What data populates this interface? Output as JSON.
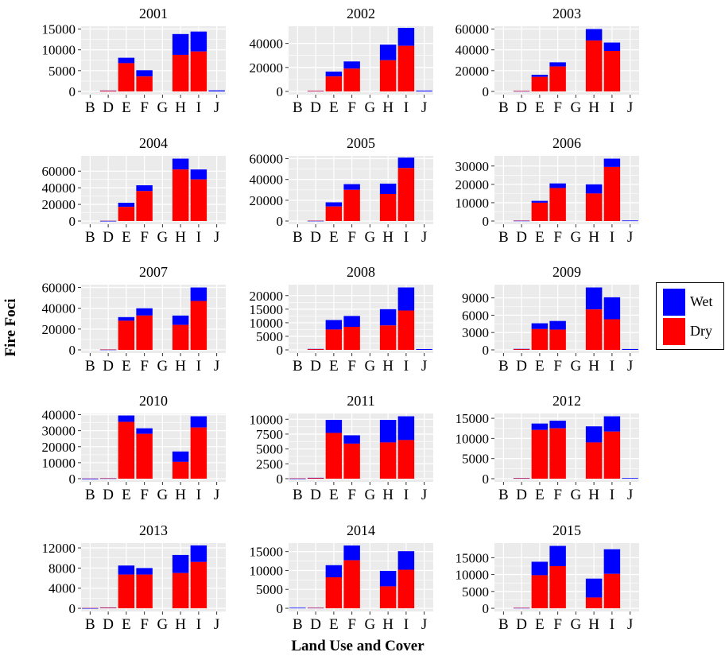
{
  "y_title": "Fire Foci",
  "x_title": "Land Use and Cover",
  "colors": {
    "Wet": "#0000ff",
    "Dry": "#ff0000",
    "panel_bg": "#ebebeb",
    "grid": "#ffffff"
  },
  "legend": [
    {
      "name": "Wet"
    },
    {
      "name": "Dry"
    }
  ],
  "chart_data": {
    "type": "bar",
    "stacked": true,
    "categories": [
      "B",
      "D",
      "E",
      "F",
      "G",
      "H",
      "I",
      "J"
    ],
    "series_names": [
      "Wet",
      "Dry"
    ],
    "panels": [
      {
        "title": "2001",
        "ylim": [
          0,
          15000
        ],
        "yticks": [
          0,
          5000,
          10000,
          15000
        ],
        "dry": [
          0,
          150,
          6800,
          3600,
          0,
          8800,
          9600,
          0
        ],
        "wet": [
          0,
          60,
          1300,
          1500,
          0,
          5000,
          4800,
          250
        ]
      },
      {
        "title": "2002",
        "ylim": [
          0,
          52000
        ],
        "yticks": [
          0,
          20000,
          40000
        ],
        "dry": [
          0,
          400,
          12500,
          19000,
          0,
          26000,
          38000,
          0
        ],
        "wet": [
          0,
          100,
          4000,
          6000,
          0,
          13000,
          15000,
          700
        ]
      },
      {
        "title": "2003",
        "ylim": [
          0,
          60000
        ],
        "yticks": [
          0,
          20000,
          40000,
          60000
        ],
        "dry": [
          0,
          400,
          14000,
          24000,
          0,
          49000,
          39000,
          0
        ],
        "wet": [
          0,
          100,
          2000,
          4000,
          0,
          11000,
          8000,
          0
        ]
      },
      {
        "title": "2004",
        "ylim": [
          0,
          75000
        ],
        "yticks": [
          0,
          20000,
          40000,
          60000
        ],
        "dry": [
          0,
          200,
          17000,
          36000,
          0,
          62000,
          50000,
          0
        ],
        "wet": [
          0,
          100,
          5000,
          7000,
          0,
          13000,
          12000,
          0
        ]
      },
      {
        "title": "2005",
        "ylim": [
          0,
          60000
        ],
        "yticks": [
          0,
          20000,
          40000,
          60000
        ],
        "dry": [
          0,
          250,
          14000,
          30000,
          0,
          26000,
          51000,
          0
        ],
        "wet": [
          0,
          100,
          4000,
          5500,
          0,
          10000,
          10000,
          0
        ]
      },
      {
        "title": "2006",
        "ylim": [
          0,
          34000
        ],
        "yticks": [
          0,
          10000,
          20000,
          30000
        ],
        "dry": [
          0,
          150,
          10000,
          18000,
          0,
          15000,
          29500,
          0
        ],
        "wet": [
          0,
          100,
          1000,
          2500,
          0,
          5000,
          4500,
          300
        ]
      },
      {
        "title": "2007",
        "ylim": [
          0,
          60000
        ],
        "yticks": [
          0,
          20000,
          40000,
          60000
        ],
        "dry": [
          0,
          300,
          28000,
          33000,
          0,
          24000,
          47000,
          0
        ],
        "wet": [
          0,
          100,
          3500,
          7000,
          0,
          9000,
          13000,
          0
        ]
      },
      {
        "title": "2008",
        "ylim": [
          0,
          23000
        ],
        "yticks": [
          0,
          5000,
          10000,
          15000,
          20000
        ],
        "dry": [
          0,
          250,
          7500,
          8500,
          0,
          9000,
          14500,
          0
        ],
        "wet": [
          0,
          100,
          3500,
          4000,
          0,
          6000,
          8500,
          300
        ]
      },
      {
        "title": "2009",
        "ylim": [
          0,
          10800
        ],
        "yticks": [
          0,
          3000,
          6000,
          9000
        ],
        "dry": [
          0,
          120,
          3600,
          3500,
          0,
          7000,
          5300,
          0
        ],
        "wet": [
          0,
          50,
          1000,
          1500,
          0,
          3800,
          3800,
          150
        ]
      },
      {
        "title": "2010",
        "ylim": [
          0,
          39000
        ],
        "yticks": [
          0,
          10000,
          20000,
          30000,
          40000
        ],
        "dry": [
          100,
          200,
          35500,
          28000,
          0,
          10500,
          32000,
          0
        ],
        "wet": [
          0,
          100,
          4000,
          3500,
          0,
          6500,
          7000,
          0
        ]
      },
      {
        "title": "2011",
        "ylim": [
          0,
          10500
        ],
        "yticks": [
          0,
          2500,
          5000,
          7500,
          10000
        ],
        "dry": [
          50,
          100,
          7700,
          5900,
          0,
          6100,
          6500,
          0
        ],
        "wet": [
          0,
          50,
          2200,
          1400,
          0,
          3800,
          4000,
          0
        ]
      },
      {
        "title": "2012",
        "ylim": [
          0,
          15500
        ],
        "yticks": [
          0,
          5000,
          10000,
          15000
        ],
        "dry": [
          0,
          100,
          12100,
          12500,
          0,
          9000,
          11700,
          0
        ],
        "wet": [
          0,
          50,
          1600,
          1900,
          0,
          4000,
          3800,
          150
        ]
      },
      {
        "title": "2013",
        "ylim": [
          0,
          12400
        ],
        "yticks": [
          0,
          4000,
          8000,
          12000
        ],
        "dry": [
          50,
          100,
          6700,
          6700,
          0,
          7000,
          9200,
          0
        ],
        "wet": [
          0,
          50,
          1800,
          1300,
          0,
          3600,
          3300,
          0
        ]
      },
      {
        "title": "2014",
        "ylim": [
          0,
          16500
        ],
        "yticks": [
          0,
          5000,
          10000,
          15000
        ],
        "dry": [
          0,
          100,
          8200,
          12700,
          0,
          5800,
          10200,
          0
        ],
        "wet": [
          150,
          50,
          3200,
          3900,
          0,
          4100,
          4900,
          0
        ]
      },
      {
        "title": "2015",
        "ylim": [
          0,
          18500
        ],
        "yticks": [
          0,
          5000,
          10000,
          15000
        ],
        "dry": [
          0,
          100,
          9800,
          12500,
          0,
          3200,
          10200,
          0
        ],
        "wet": [
          0,
          50,
          4000,
          6000,
          0,
          5600,
          7300,
          0
        ]
      }
    ]
  }
}
